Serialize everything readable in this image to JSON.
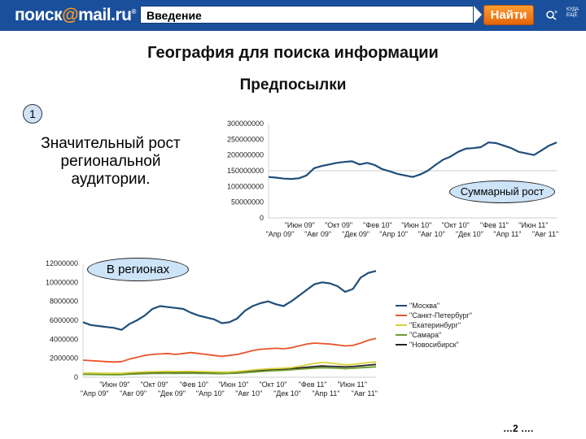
{
  "topbar": {
    "logo_prefix": "поиск",
    "logo_at": "@",
    "logo_suffix": "mail.ru",
    "logo_reg": "®",
    "search_value": "Введение",
    "find_label": "Найти",
    "icon_1": "settings-icon",
    "icon_2": "search-history-icon",
    "icon_2_text": "КУДА ЕЩЁ"
  },
  "slide": {
    "title": "География для поиска информации",
    "subtitle": "Предпосылки",
    "badge": "1",
    "description": "Значительный рост региональной аудитории.",
    "callout_total": "Суммарный рост",
    "callout_regions": "В регионах",
    "page_number": "…2 …."
  },
  "colors": {
    "topbar": "#1a4f9c",
    "accent_orange": "#e3650a",
    "series_moscow": "#1f4e79",
    "series_spb": "#e8552a",
    "series_ekb": "#d9d23a",
    "series_samara": "#6e9b2e",
    "series_nsk": "#222222"
  },
  "chart_data": [
    {
      "type": "line",
      "ylim": [
        0,
        300000000
      ],
      "y_ticks": [
        "300000000",
        "250000000",
        "200000000",
        "150000000",
        "100000000",
        "50000000",
        "0"
      ],
      "x_labels_top": [
        "\"Июн 09\"",
        "\"Окт 09\"",
        "\"Фев 10\"",
        "\"Июн 10\"",
        "\"Окт 10\"",
        "\"Фев 11\"",
        "\"Июн 11\""
      ],
      "x_labels_bottom": [
        "\"Апр 09\"",
        "\"Авг 09\"",
        "\"Дек 09\"",
        "\"Апр 10\"",
        "\"Авг 10\"",
        "\"Дек 10\"",
        "\"Апр 11\"",
        "\"Авг 11\""
      ],
      "series": [
        {
          "values": [
            130000000,
            128000000,
            125000000,
            124000000,
            126000000,
            135000000,
            158000000,
            165000000,
            170000000,
            175000000,
            178000000,
            180000000,
            170000000,
            175000000,
            168000000,
            155000000,
            148000000,
            140000000,
            135000000,
            130000000,
            138000000,
            150000000,
            168000000,
            185000000,
            195000000,
            210000000,
            220000000,
            222000000,
            225000000,
            240000000,
            238000000,
            230000000,
            222000000,
            210000000,
            205000000,
            200000000,
            215000000,
            230000000,
            240000000
          ]
        }
      ]
    },
    {
      "type": "line",
      "ylim": [
        0,
        12000000
      ],
      "y_ticks": [
        "12000000",
        "10000000",
        "8000000",
        "6000000",
        "4000000",
        "2000000",
        "0"
      ],
      "x_labels_top": [
        "\"Июн 09\"",
        "\"Окт 09\"",
        "\"Фев 10\"",
        "\"Июн 10\"",
        "\"Окт 10\"",
        "\"Фев 11\"",
        "\"Июн 11\""
      ],
      "x_labels_bottom": [
        "\"Апр 09\"",
        "\"Авг 09\"",
        "\"Дек 09\"",
        "\"Апр 10\"",
        "\"Авг 10\"",
        "\"Дек 10\"",
        "\"Апр 11\"",
        "\"Авг 11\""
      ],
      "series": [
        {
          "name": "\"Москва\"",
          "values": [
            5800000,
            5500000,
            5400000,
            5300000,
            5200000,
            5000000,
            5600000,
            6000000,
            6500000,
            7200000,
            7500000,
            7400000,
            7300000,
            7200000,
            6800000,
            6500000,
            6300000,
            6100000,
            5700000,
            5800000,
            6200000,
            7000000,
            7500000,
            7800000,
            8000000,
            7700000,
            7500000,
            8000000,
            8600000,
            9200000,
            9800000,
            10000000,
            9900000,
            9600000,
            9000000,
            9300000,
            10500000,
            11000000,
            11200000
          ]
        },
        {
          "name": "\"Санкт-Петербург\"",
          "values": [
            1800000,
            1750000,
            1700000,
            1650000,
            1600000,
            1650000,
            1900000,
            2100000,
            2300000,
            2400000,
            2450000,
            2500000,
            2400000,
            2500000,
            2600000,
            2500000,
            2400000,
            2300000,
            2200000,
            2300000,
            2400000,
            2600000,
            2800000,
            2950000,
            3000000,
            3050000,
            3000000,
            3100000,
            3300000,
            3500000,
            3600000,
            3550000,
            3500000,
            3400000,
            3300000,
            3350000,
            3600000,
            3900000,
            4100000
          ]
        },
        {
          "name": "\"Екатеринбург\"",
          "values": [
            450000,
            440000,
            430000,
            420000,
            410000,
            420000,
            480000,
            520000,
            560000,
            580000,
            600000,
            620000,
            600000,
            610000,
            620000,
            600000,
            580000,
            560000,
            540000,
            560000,
            600000,
            680000,
            760000,
            820000,
            880000,
            920000,
            950000,
            1000000,
            1150000,
            1300000,
            1450000,
            1550000,
            1500000,
            1400000,
            1300000,
            1350000,
            1450000,
            1550000,
            1600000
          ]
        },
        {
          "name": "\"Самара\"",
          "values": [
            300000,
            290000,
            280000,
            270000,
            260000,
            270000,
            310000,
            340000,
            370000,
            390000,
            400000,
            410000,
            400000,
            410000,
            420000,
            400000,
            390000,
            380000,
            370000,
            390000,
            420000,
            480000,
            540000,
            600000,
            660000,
            700000,
            730000,
            780000,
            850000,
            900000,
            960000,
            1000000,
            980000,
            950000,
            900000,
            940000,
            1000000,
            1050000,
            1100000
          ]
        },
        {
          "name": "\"Новосибирск\"",
          "values": [
            380000,
            370000,
            360000,
            350000,
            340000,
            350000,
            400000,
            440000,
            470000,
            500000,
            520000,
            540000,
            530000,
            540000,
            550000,
            530000,
            520000,
            510000,
            500000,
            520000,
            560000,
            620000,
            690000,
            750000,
            800000,
            840000,
            870000,
            910000,
            980000,
            1050000,
            1120000,
            1180000,
            1150000,
            1120000,
            1080000,
            1120000,
            1200000,
            1280000,
            1350000
          ]
        }
      ]
    }
  ]
}
